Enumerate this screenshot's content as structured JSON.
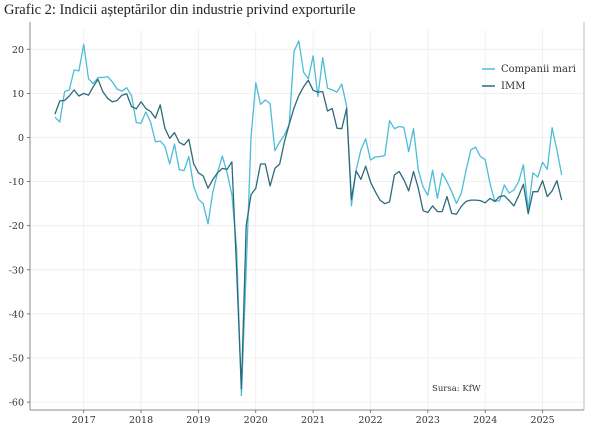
{
  "chart_data": {
    "type": "line",
    "title": "Grafic 2: Indicii așteptărilor din industrie privind exporturile",
    "xlabel": "",
    "ylabel": "",
    "ylim": [
      -62,
      24.5
    ],
    "yticks": [
      20,
      10,
      0,
      -10,
      -20,
      -30,
      -40,
      -50,
      -60
    ],
    "ytick_labels": [
      "20",
      "10",
      "0",
      "-10",
      "-20",
      "-30",
      "-40",
      "-50",
      "-60"
    ],
    "xticks": [
      "2017",
      "2018",
      "2019",
      "2020",
      "2021",
      "2022",
      "2023",
      "2024",
      "2025"
    ],
    "grid": true,
    "legend": "top-right",
    "annotation": "Sursa: KfW",
    "frequency": "monthly",
    "x_start": "2016-07",
    "series": [
      {
        "name": "Companii mari",
        "color": "#4cbdd8",
        "values": [
          4.6,
          3.5,
          10.4,
          10.8,
          15.3,
          15.1,
          21.1,
          13.3,
          12.2,
          13.6,
          13.6,
          13.8,
          12.6,
          11.0,
          10.5,
          11.3,
          9.5,
          3.4,
          3.2,
          5.8,
          3.5,
          -1.0,
          -0.8,
          -2.0,
          -6.0,
          -1.5,
          -7.3,
          -7.5,
          -4.3,
          -11.0,
          -14.0,
          -15.0,
          -19.6,
          -12.5,
          -8.0,
          -4.2,
          -8.0,
          -13.0,
          -25.0,
          -58.5,
          -30.0,
          0.0,
          12.4,
          7.5,
          8.5,
          7.7,
          -3.0,
          -1.0,
          0.5,
          3.0,
          19.5,
          21.9,
          14.8,
          13.3,
          18.5,
          9.3,
          18.1,
          11.2,
          10.8,
          10.3,
          12.1,
          7.1,
          -15.5,
          -7.4,
          -2.8,
          -0.3,
          -5.1,
          -4.4,
          -4.3,
          -4.1,
          3.8,
          2.0,
          2.5,
          2.3,
          -3.2,
          2.0,
          -7.4,
          -11.2,
          -13.1,
          -7.4,
          -13.8,
          -8.1,
          -10.0,
          -12.3,
          -14.9,
          -12.6,
          -7.4,
          -2.8,
          -2.2,
          -4.3,
          -5.0,
          -10.4,
          -14.5,
          -14.3,
          -10.8,
          -12.6,
          -11.9,
          -10.0,
          -6.2,
          -16.4,
          -8.0,
          -9.0,
          -5.6,
          -7.2,
          2.2,
          -2.8,
          -8.5
        ]
      },
      {
        "name": "IMM",
        "color": "#2e6a7a",
        "values": [
          5.3,
          8.3,
          8.4,
          9.4,
          10.8,
          9.4,
          10.0,
          9.6,
          11.5,
          13.2,
          10.4,
          8.9,
          8.1,
          8.4,
          9.6,
          9.9,
          7.0,
          6.5,
          8.1,
          6.6,
          5.9,
          4.4,
          7.4,
          2.1,
          -0.2,
          1.1,
          -1.1,
          -1.7,
          -0.4,
          -5.9,
          -8.0,
          -8.7,
          -11.5,
          -9.6,
          -8.0,
          -7.0,
          -7.2,
          -5.5,
          -30.0,
          -57.0,
          -20.0,
          -13.0,
          -11.5,
          -6.0,
          -6.0,
          -11.0,
          -7.0,
          -6.0,
          -1.0,
          3.0,
          6.7,
          9.5,
          11.5,
          13.0,
          10.7,
          10.3,
          10.4,
          6.0,
          6.6,
          2.1,
          2.0,
          6.6,
          -14.0,
          -7.6,
          -9.5,
          -6.5,
          -10.1,
          -12.3,
          -14.2,
          -15.0,
          -14.6,
          -8.5,
          -7.7,
          -9.6,
          -12.1,
          -7.7,
          -11.5,
          -16.6,
          -17.0,
          -15.5,
          -16.8,
          -16.8,
          -13.4,
          -17.2,
          -17.4,
          -15.6,
          -14.5,
          -14.2,
          -14.2,
          -14.3,
          -14.8,
          -13.8,
          -14.5,
          -13.4,
          -13.2,
          -14.3,
          -15.5,
          -13.2,
          -10.6,
          -17.3,
          -12.3,
          -12.3,
          -9.8,
          -13.4,
          -12.1,
          -9.8,
          -14.2
        ]
      }
    ]
  }
}
